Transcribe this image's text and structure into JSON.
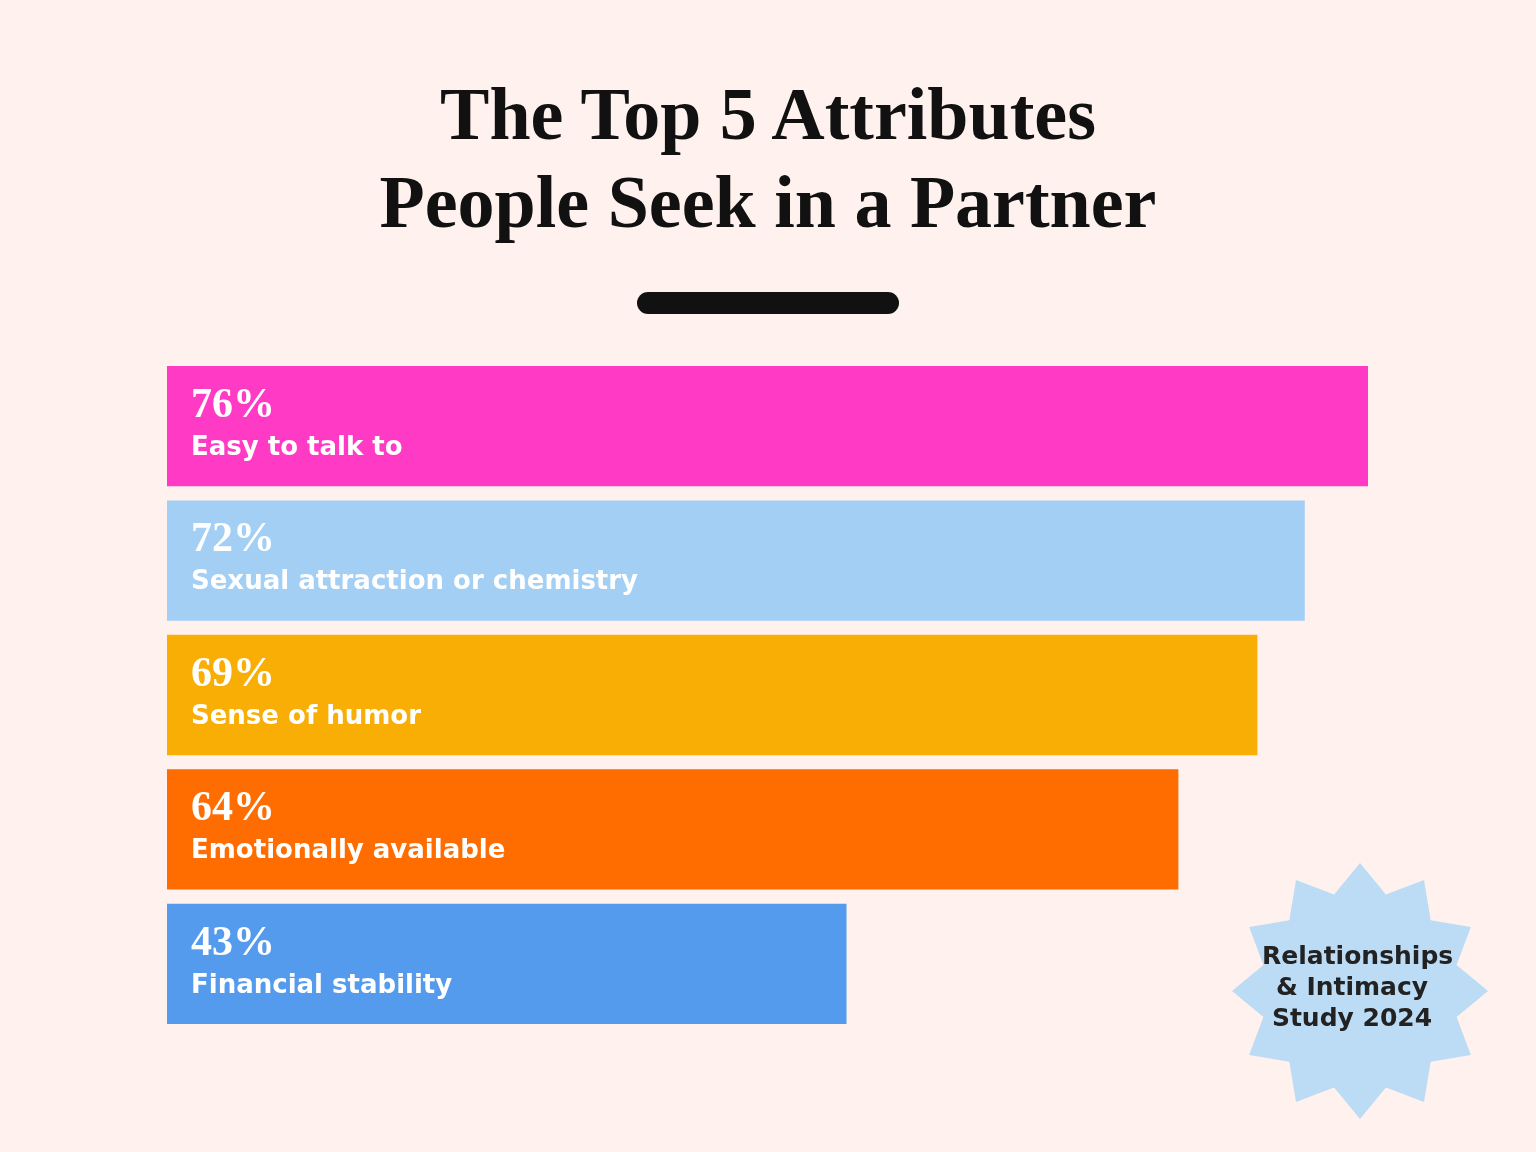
{
  "chart_data": {
    "type": "bar",
    "orientation": "horizontal",
    "title": "The Top 5 Attributes People Seek in a Partner",
    "categories": [
      "Easy to talk to",
      "Sexual attraction or chemistry",
      "Sense of humor",
      "Emotionally available",
      "Financial stability"
    ],
    "values": [
      76,
      72,
      69,
      64,
      43
    ],
    "value_labels": [
      "76%",
      "72%",
      "69%",
      "64%",
      "43%"
    ],
    "colors": [
      "#ff3ac4",
      "#a3cff5",
      "#f9ae05",
      "#ff6d00",
      "#559bed"
    ],
    "annotations": [
      "Relationships & Intimacy Study 2024"
    ],
    "legend": false
  }
}
